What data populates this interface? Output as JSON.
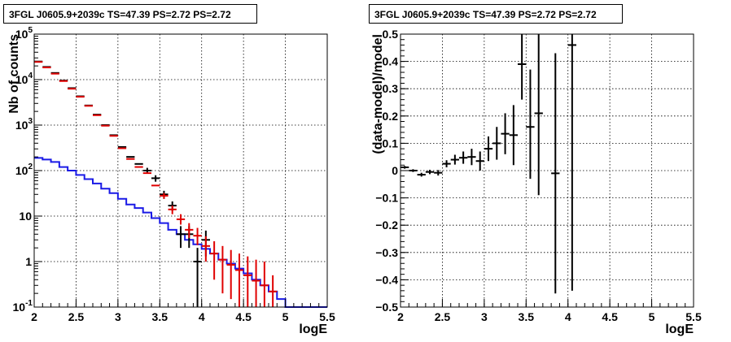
{
  "panels": {
    "left": {
      "title": "3FGL J0605.9+2039c TS=47.39 PS=2.72 PS=2.72"
    },
    "right": {
      "title": "3FGL J0605.9+2039c TS=47.39 PS=2.72 PS=2.72"
    }
  },
  "colors": {
    "data": "#000000",
    "model": "#e00000",
    "background_model": "#1a1ae6"
  },
  "chart_data": [
    {
      "type": "scatter",
      "title": "3FGL J0605.9+2039c TS=47.39 PS=2.72 PS=2.72",
      "xlabel": "logE",
      "ylabel": "Nb of counts",
      "xlim": [
        2,
        5.5
      ],
      "ylim": [
        0.1,
        100000
      ],
      "yscale": "log",
      "grid": true,
      "x_ticks": [
        "2",
        "2.5",
        "3",
        "3.5",
        "4",
        "4.5",
        "5",
        "5.5"
      ],
      "y_ticks": [
        {
          "v": 0.1,
          "label": "10",
          "sup": "-1"
        },
        {
          "v": 1,
          "label": "1",
          "sup": ""
        },
        {
          "v": 10,
          "label": "10",
          "sup": ""
        },
        {
          "v": 100,
          "label": "10",
          "sup": "2"
        },
        {
          "v": 1000,
          "label": "10",
          "sup": "3"
        },
        {
          "v": 10000,
          "label": "10",
          "sup": "4"
        },
        {
          "v": 100000,
          "label": "10",
          "sup": "5"
        }
      ],
      "bin_edges": [
        2.0,
        2.1,
        2.2,
        2.3,
        2.4,
        2.5,
        2.6,
        2.7,
        2.8,
        2.9,
        3.0,
        3.1,
        3.2,
        3.3,
        3.4,
        3.5,
        3.6,
        3.7,
        3.8,
        3.9,
        4.0,
        4.1,
        4.2,
        4.3,
        4.4,
        4.5,
        4.6,
        4.7,
        4.8,
        4.9,
        5.0,
        5.1,
        5.2,
        5.3,
        5.4,
        5.5
      ],
      "series": [
        {
          "role": "data",
          "points": [
            {
              "x": 2.05,
              "y": 25000
            },
            {
              "x": 2.15,
              "y": 19000
            },
            {
              "x": 2.25,
              "y": 14000
            },
            {
              "x": 2.35,
              "y": 9500
            },
            {
              "x": 2.45,
              "y": 6500
            },
            {
              "x": 2.55,
              "y": 4300
            },
            {
              "x": 2.65,
              "y": 2700
            },
            {
              "x": 2.75,
              "y": 1700
            },
            {
              "x": 2.85,
              "y": 1000
            },
            {
              "x": 2.95,
              "y": 600
            },
            {
              "x": 3.05,
              "y": 330
            },
            {
              "x": 3.15,
              "y": 200
            },
            {
              "x": 3.25,
              "y": 140
            },
            {
              "x": 3.35,
              "y": 100,
              "lo": 85,
              "hi": 115
            },
            {
              "x": 3.45,
              "y": 68,
              "lo": 57,
              "hi": 79
            },
            {
              "x": 3.55,
              "y": 30,
              "lo": 24,
              "hi": 36
            },
            {
              "x": 3.65,
              "y": 17,
              "lo": 13,
              "hi": 21
            },
            {
              "x": 3.75,
              "y": 4,
              "lo": 2,
              "hi": 6
            },
            {
              "x": 3.85,
              "y": 4,
              "lo": 2,
              "hi": 6
            },
            {
              "x": 3.95,
              "y": 1,
              "lo": 0.1,
              "hi": 2
            },
            {
              "x": 4.05,
              "y": 3,
              "lo": 1.3,
              "hi": 4.8
            }
          ]
        },
        {
          "role": "model",
          "points": [
            {
              "x": 2.05,
              "y": 24500
            },
            {
              "x": 2.15,
              "y": 18500
            },
            {
              "x": 2.25,
              "y": 13500
            },
            {
              "x": 2.35,
              "y": 9300
            },
            {
              "x": 2.45,
              "y": 6300
            },
            {
              "x": 2.55,
              "y": 4200
            },
            {
              "x": 2.65,
              "y": 2650
            },
            {
              "x": 2.75,
              "y": 1650
            },
            {
              "x": 2.85,
              "y": 970
            },
            {
              "x": 2.95,
              "y": 580
            },
            {
              "x": 3.05,
              "y": 310
            },
            {
              "x": 3.15,
              "y": 180
            },
            {
              "x": 3.25,
              "y": 120
            },
            {
              "x": 3.35,
              "y": 88
            },
            {
              "x": 3.45,
              "y": 47
            },
            {
              "x": 3.55,
              "y": 28,
              "lo": 24,
              "hi": 32
            },
            {
              "x": 3.65,
              "y": 14,
              "lo": 11,
              "hi": 17
            },
            {
              "x": 3.75,
              "y": 8.5,
              "lo": 6.5,
              "hi": 11
            },
            {
              "x": 3.85,
              "y": 5,
              "lo": 3.3,
              "hi": 7
            },
            {
              "x": 3.95,
              "y": 3.7,
              "lo": 2.3,
              "hi": 5.5
            },
            {
              "x": 4.05,
              "y": 2.2,
              "lo": 1,
              "hi": 3.6
            },
            {
              "x": 4.15,
              "y": 1.5,
              "lo": 0.4,
              "hi": 2.8
            },
            {
              "x": 4.25,
              "y": 1.1,
              "lo": 0.2,
              "hi": 2.2
            },
            {
              "x": 4.35,
              "y": 0.85,
              "lo": 0.15,
              "hi": 1.8
            },
            {
              "x": 4.45,
              "y": 0.65,
              "lo": 0.1,
              "hi": 1.5
            },
            {
              "x": 4.55,
              "y": 0.5,
              "lo": 0.1,
              "hi": 1.3
            },
            {
              "x": 4.65,
              "y": 0.38,
              "lo": 0.1,
              "hi": 1.1
            },
            {
              "x": 4.75,
              "y": 0.3,
              "lo": 0.1,
              "hi": 1.0
            },
            {
              "x": 4.85,
              "y": 0.22,
              "lo": 0.1,
              "hi": 0.5
            }
          ]
        },
        {
          "role": "background_model",
          "step_values": [
            190,
            175,
            155,
            120,
            100,
            80,
            65,
            52,
            40,
            32,
            24,
            18,
            15,
            12,
            9,
            7,
            5,
            4,
            3,
            2.4,
            1.9,
            1.5,
            1.1,
            0.9,
            0.7,
            0.55,
            0.4,
            0.3,
            0.22,
            0.15,
            0.1,
            0.1,
            0.1,
            0.1,
            0.1
          ]
        }
      ]
    },
    {
      "type": "scatter",
      "title": "3FGL J0605.9+2039c TS=47.39 PS=2.72 PS=2.72",
      "xlabel": "logE",
      "ylabel": "(data-model)/model",
      "xlim": [
        2,
        5.5
      ],
      "ylim": [
        -0.5,
        0.5
      ],
      "grid": true,
      "x_ticks": [
        "2",
        "2.5",
        "3",
        "3.5",
        "4",
        "4.5",
        "5",
        "5.5"
      ],
      "y_ticks": [
        "−0.5",
        "−0.4",
        "−0.3",
        "−0.2",
        "−0.1",
        "0",
        "0.1",
        "0.2",
        "0.3",
        "0.4",
        "0.5"
      ],
      "series": [
        {
          "role": "residuals",
          "points": [
            {
              "x": 2.05,
              "y": 0.012,
              "lo": 0.007,
              "hi": 0.017
            },
            {
              "x": 2.15,
              "y": 0.0,
              "lo": -0.005,
              "hi": 0.005
            },
            {
              "x": 2.25,
              "y": -0.015,
              "lo": -0.022,
              "hi": -0.008
            },
            {
              "x": 2.35,
              "y": -0.005,
              "lo": -0.013,
              "hi": 0.003
            },
            {
              "x": 2.45,
              "y": -0.008,
              "lo": -0.018,
              "hi": 0.002
            },
            {
              "x": 2.55,
              "y": 0.025,
              "lo": 0.012,
              "hi": 0.038
            },
            {
              "x": 2.65,
              "y": 0.04,
              "lo": 0.022,
              "hi": 0.058
            },
            {
              "x": 2.75,
              "y": 0.047,
              "lo": 0.025,
              "hi": 0.07
            },
            {
              "x": 2.85,
              "y": 0.05,
              "lo": 0.02,
              "hi": 0.08
            },
            {
              "x": 2.95,
              "y": 0.035,
              "lo": 0.0,
              "hi": 0.07
            },
            {
              "x": 3.05,
              "y": 0.08,
              "lo": 0.035,
              "hi": 0.125
            },
            {
              "x": 3.15,
              "y": 0.1,
              "lo": 0.04,
              "hi": 0.16
            },
            {
              "x": 3.25,
              "y": 0.135,
              "lo": 0.06,
              "hi": 0.21
            },
            {
              "x": 3.35,
              "y": 0.13,
              "lo": 0.02,
              "hi": 0.24
            },
            {
              "x": 3.45,
              "y": 0.39,
              "lo": 0.26,
              "hi": 0.5
            },
            {
              "x": 3.55,
              "y": 0.16,
              "lo": -0.03,
              "hi": 0.37
            },
            {
              "x": 3.65,
              "y": 0.21,
              "lo": -0.09,
              "hi": 0.5
            },
            {
              "x": 3.85,
              "y": -0.01,
              "lo": -0.45,
              "hi": 0.43
            },
            {
              "x": 4.05,
              "y": 0.46,
              "lo": -0.44,
              "hi": 0.5
            }
          ]
        }
      ]
    }
  ]
}
